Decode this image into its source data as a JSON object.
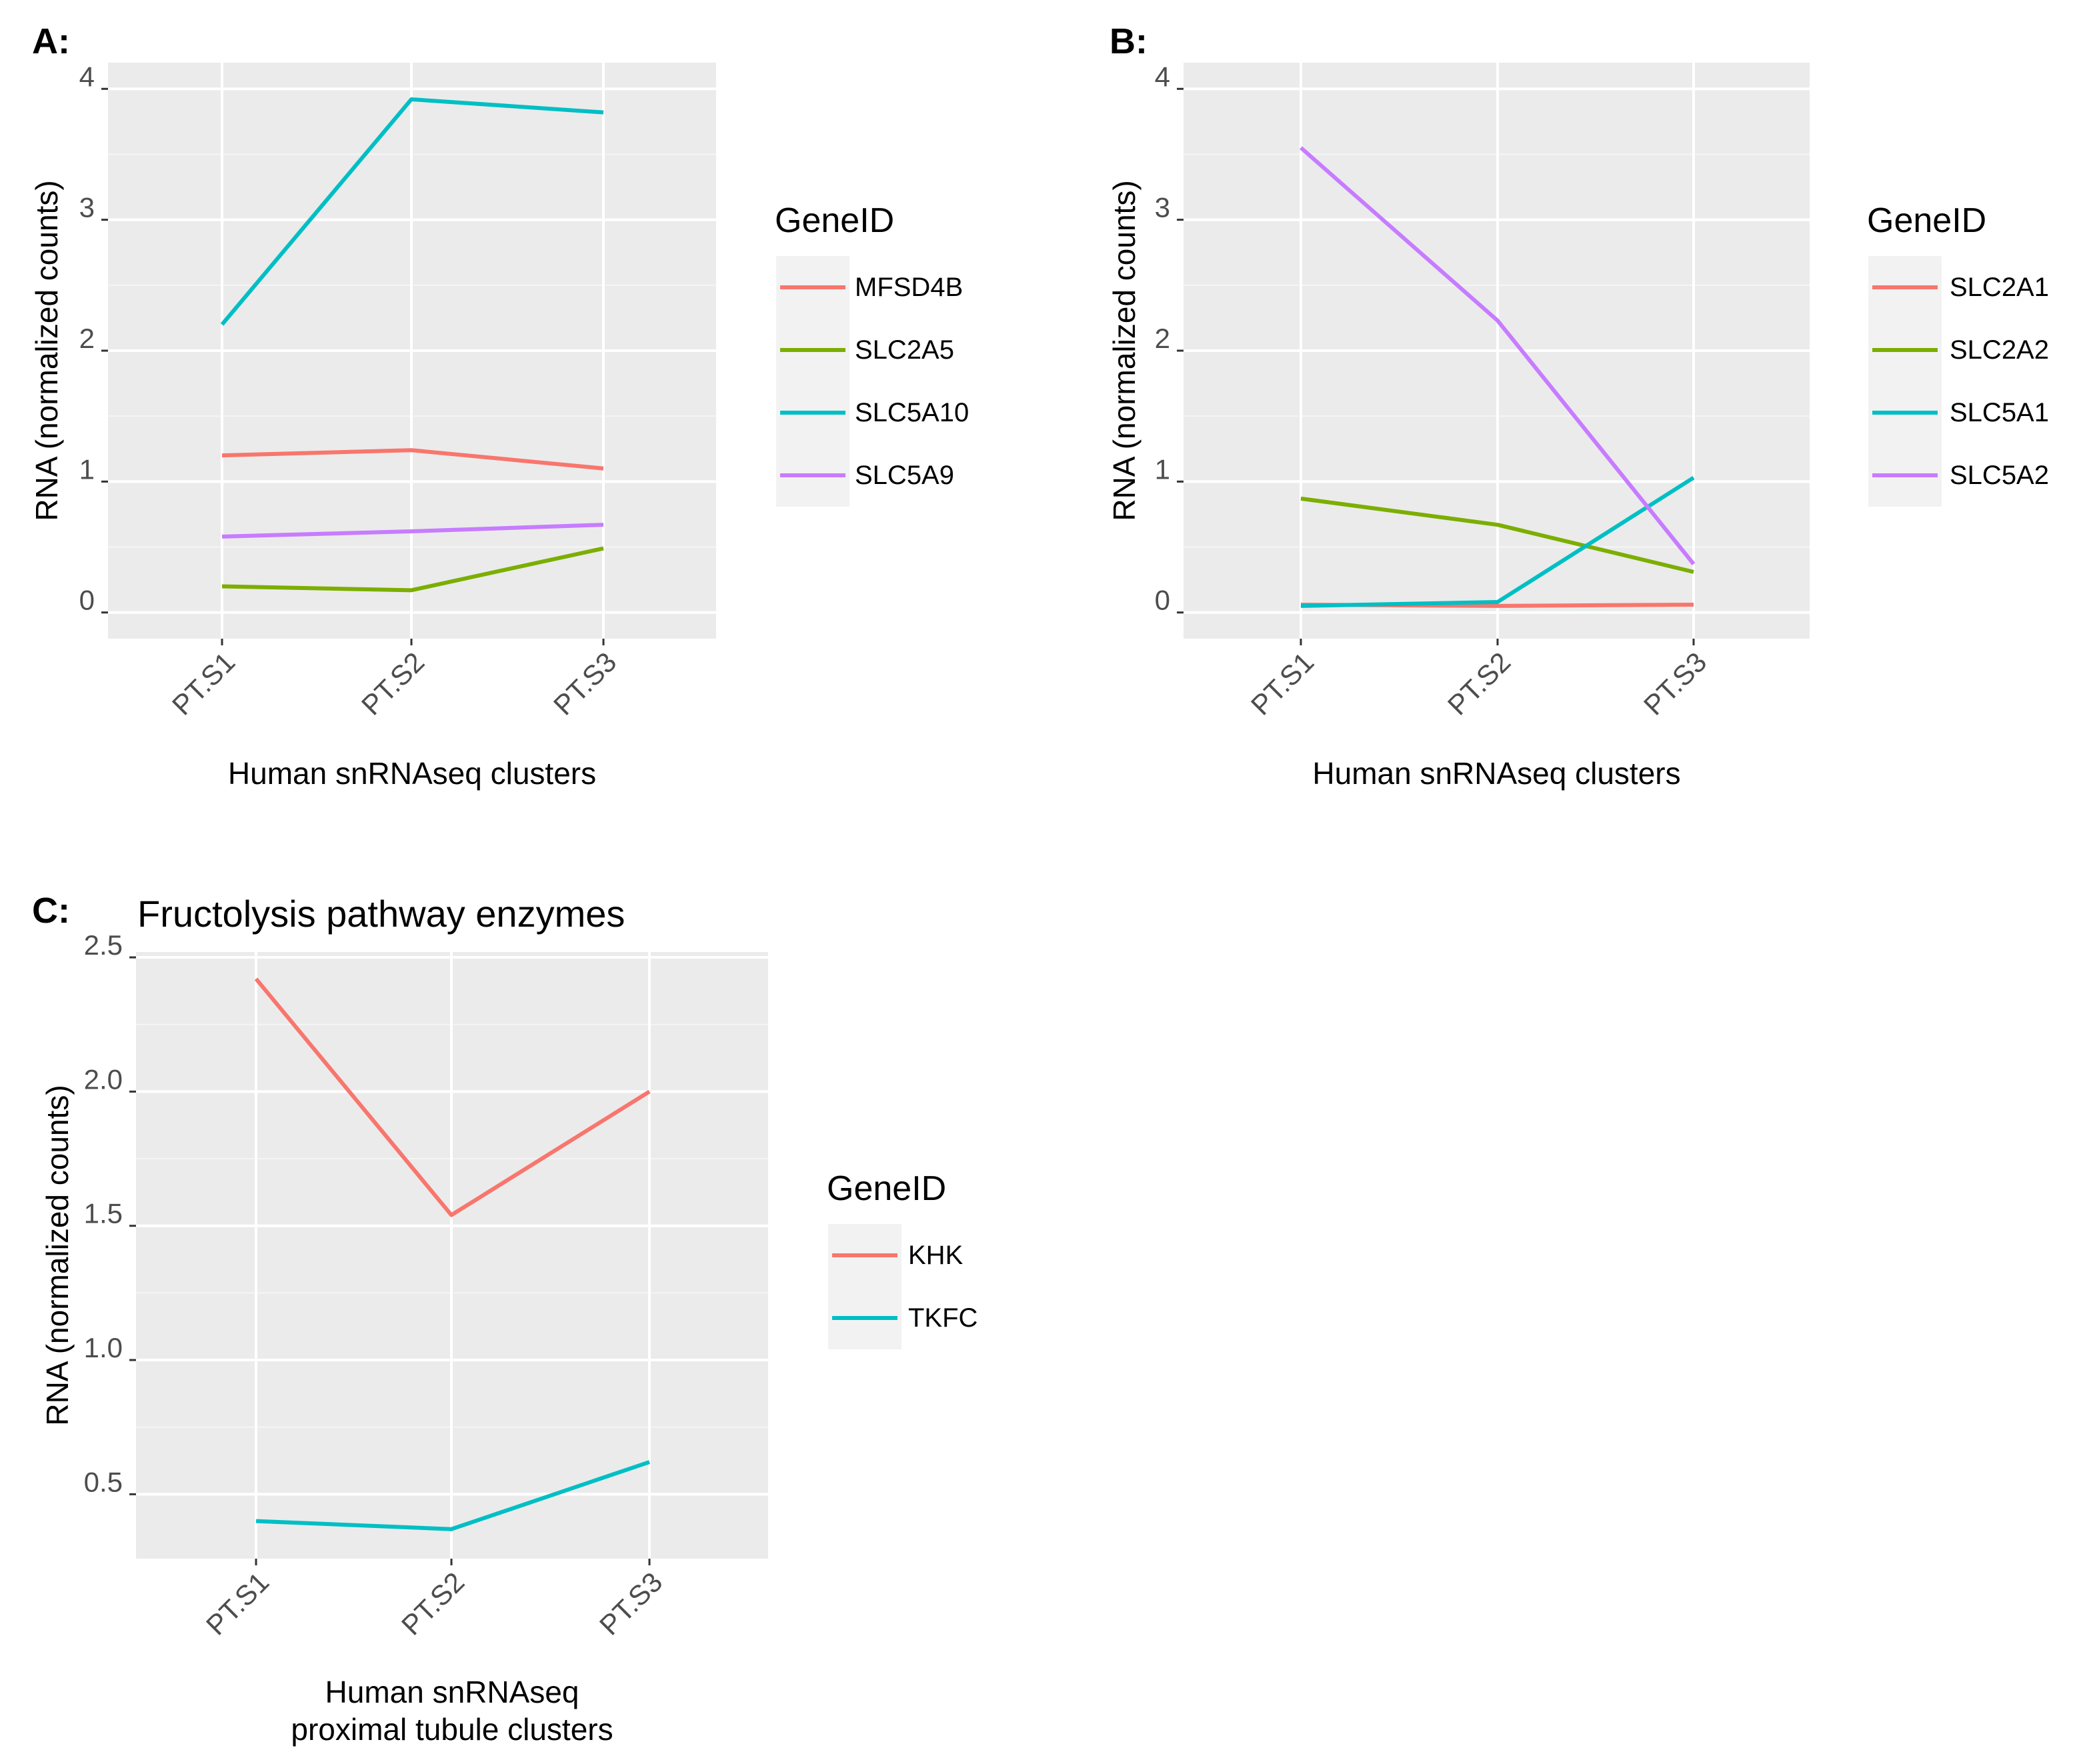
{
  "chart_data": [
    {
      "panel": "A:",
      "type": "line",
      "title": "",
      "xlabel": "Human snRNAseq clusters",
      "ylabel": "RNA (normalized counts)",
      "categories": [
        "PT.S1",
        "PT.S2",
        "PT.S3"
      ],
      "ylim": [
        -0.2,
        4.2
      ],
      "yticks": [
        0,
        1,
        2,
        3,
        4
      ],
      "ytick_labels": [
        "0",
        "1",
        "2",
        "3",
        "4"
      ],
      "grid": true,
      "legend_title": "GeneID",
      "legend_position": "right",
      "series": [
        {
          "name": "MFSD4B",
          "color": "#F8766D",
          "values": [
            1.2,
            1.24,
            1.1
          ]
        },
        {
          "name": "SLC2A5",
          "color": "#7CAE00",
          "values": [
            0.2,
            0.17,
            0.49
          ]
        },
        {
          "name": "SLC5A10",
          "color": "#00BFC4",
          "values": [
            2.2,
            3.92,
            3.82
          ]
        },
        {
          "name": "SLC5A9",
          "color": "#C77CFF",
          "values": [
            0.58,
            0.62,
            0.67
          ]
        }
      ]
    },
    {
      "panel": "B:",
      "type": "line",
      "title": "",
      "xlabel": "Human snRNAseq clusters",
      "ylabel": "RNA (normalized counts)",
      "categories": [
        "PT.S1",
        "PT.S2",
        "PT.S3"
      ],
      "ylim": [
        -0.2,
        4.2
      ],
      "yticks": [
        0,
        1,
        2,
        3,
        4
      ],
      "ytick_labels": [
        "0",
        "1",
        "2",
        "3",
        "4"
      ],
      "grid": true,
      "legend_title": "GeneID",
      "legend_position": "right",
      "series": [
        {
          "name": "SLC2A1",
          "color": "#F8766D",
          "values": [
            0.06,
            0.05,
            0.06
          ]
        },
        {
          "name": "SLC2A2",
          "color": "#7CAE00",
          "values": [
            0.87,
            0.67,
            0.31
          ]
        },
        {
          "name": "SLC5A1",
          "color": "#00BFC4",
          "values": [
            0.05,
            0.08,
            1.03
          ]
        },
        {
          "name": "SLC5A2",
          "color": "#C77CFF",
          "values": [
            3.55,
            2.23,
            0.37
          ]
        }
      ]
    },
    {
      "panel": "C:",
      "type": "line",
      "title": "Fructolysis pathway enzymes",
      "xlabel": "Human snRNAseq\nproximal tubule clusters",
      "ylabel": "RNA (normalized counts)",
      "categories": [
        "PT.S1",
        "PT.S2",
        "PT.S3"
      ],
      "ylim": [
        0.26,
        2.52
      ],
      "yticks": [
        0.5,
        1.0,
        1.5,
        2.0,
        2.5
      ],
      "ytick_labels": [
        "0.5",
        "1.0",
        "1.5",
        "2.0",
        "2.5"
      ],
      "grid": true,
      "legend_title": "GeneID",
      "legend_position": "right",
      "series": [
        {
          "name": "KHK",
          "color": "#F8766D",
          "values": [
            2.42,
            1.54,
            2.0
          ]
        },
        {
          "name": "TKFC",
          "color": "#00BFC4",
          "values": [
            0.4,
            0.37,
            0.62
          ]
        }
      ]
    }
  ]
}
